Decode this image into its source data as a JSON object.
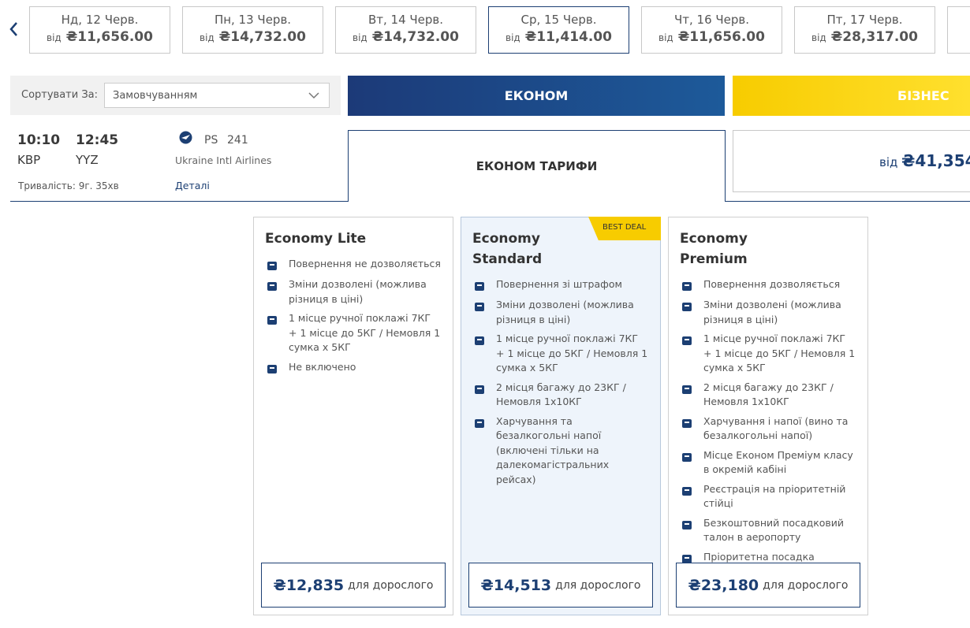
{
  "date_tabs": [
    {
      "day": "Нд, 12 Черв.",
      "from": "від",
      "price": "₴11,656.00"
    },
    {
      "day": "Пн, 13 Черв.",
      "from": "від",
      "price": "₴14,732.00"
    },
    {
      "day": "Вт, 14 Черв.",
      "from": "від",
      "price": "₴14,732.00"
    },
    {
      "day": "Ср, 15 Черв.",
      "from": "від",
      "price": "₴11,414.00"
    },
    {
      "day": "Чт, 16 Черв.",
      "from": "від",
      "price": "₴11,656.00"
    },
    {
      "day": "Пт, 17 Черв.",
      "from": "від",
      "price": "₴28,317.00"
    }
  ],
  "sort": {
    "label": "Сортувати За:",
    "value": "Замовчуванням"
  },
  "cabins": {
    "economy": "ЕКОНОМ",
    "business": "БІЗНЕС"
  },
  "flight": {
    "depart_time": "10:10",
    "depart_airport": "KBP",
    "arrive_time": "12:45",
    "arrive_airport": "YYZ",
    "flight_code": "PS",
    "flight_number": "241",
    "airline": "Ukraine Intl Airlines",
    "duration": "Тривалість: 9г. 35хв",
    "details": "Деталі"
  },
  "fare_tabs": {
    "economy": "ЕКОНОМ ТАРИФИ",
    "business_from": "від",
    "business_price": "₴41,354"
  },
  "fares": [
    {
      "name": "Economy Lite",
      "features": [
        "Повернення не дозволяється",
        "Зміни дозволені (можлива різниця в ціні)",
        "1 місце ручної поклажі 7КГ + 1 місце до 5КГ / Немовля 1 сумка x 5КГ",
        "Не включено"
      ],
      "price": "₴12,835",
      "price_unit": "для дорослого"
    },
    {
      "name": "Economy Standard",
      "badge": "BEST DEAL",
      "features": [
        "Повернення зі штрафом",
        "Зміни дозволені (можлива різниця в ціні)",
        "1 місце ручної поклажі 7КГ + 1 місце до 5КГ / Немовля 1 сумка x 5КГ",
        "2 місця багажу до 23КГ / Немовля 1x10КГ",
        "Харчування та безалкогольні напої (включені тільки на далекомагістральних рейсах)"
      ],
      "price": "₴14,513",
      "price_unit": "для дорослого"
    },
    {
      "name": "Economy Premium",
      "features": [
        "Повернення дозволяється",
        "Зміни дозволені (можлива різниця в ціні)",
        "1 місце ручної поклажі 7КГ + 1 місце до 5КГ / Немовля 1 сумка x 5КГ",
        "2 місця багажу до 23КГ / Немовля 1x10КГ",
        "Харчування і напої (вино та безалкогольні напої)",
        "Місце Економ Преміум класу в окремій кабіні",
        "Реєстрація на пріоритетній стійці",
        "Безкоштовний посадковий талон в аеропорту",
        "Пріоритетна посадка"
      ],
      "price": "₴23,180",
      "price_unit": "для дорослого"
    }
  ]
}
